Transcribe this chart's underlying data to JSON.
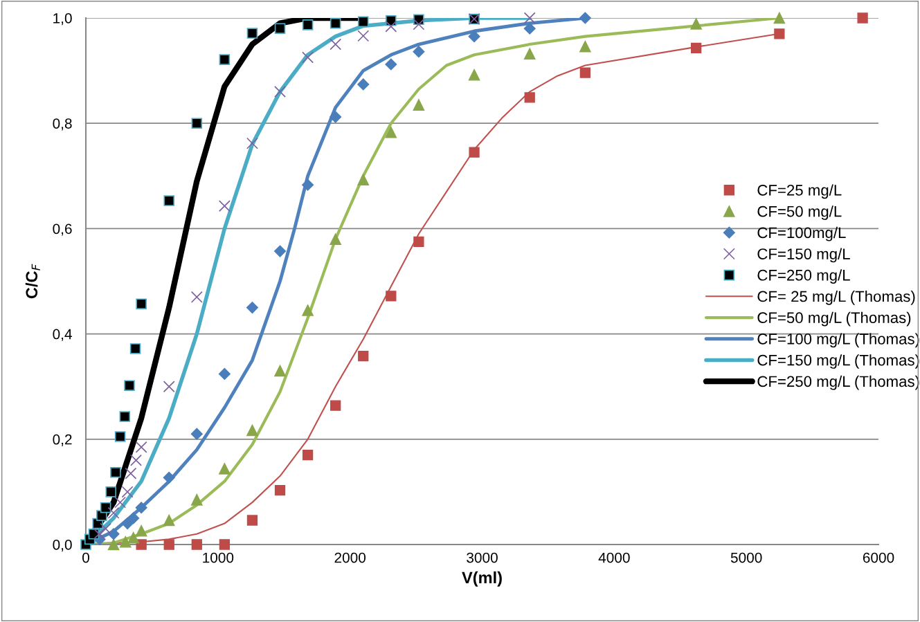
{
  "chart_data": {
    "type": "scatter",
    "xlabel": "V(ml)",
    "ylabel": "C/C$_{F}$",
    "xlim": [
      0,
      6000
    ],
    "xticks": [
      0,
      1000,
      2000,
      3000,
      4000,
      5000,
      6000
    ],
    "ylim": [
      0,
      1.0
    ],
    "yticks": [
      {
        "value": 0,
        "label": "0,0"
      },
      {
        "value": 0.2,
        "label": "0,2"
      },
      {
        "value": 0.4,
        "label": "0,4"
      },
      {
        "value": 0.6,
        "label": "0,6"
      },
      {
        "value": 0.8,
        "label": "0,8"
      },
      {
        "value": 1.0,
        "label": "1,0"
      }
    ],
    "grid": "y",
    "legend": "right",
    "series": [
      {
        "name": "CF=25 mg/L",
        "marker": "square",
        "color": "#be4b48",
        "x": [
          420,
          630,
          840,
          1050,
          1260,
          1470,
          1680,
          1890,
          2100,
          2310,
          2520,
          2940,
          3360,
          3780,
          4620,
          5250,
          5880
        ],
        "values": [
          0,
          0,
          0,
          0,
          0.046,
          0.103,
          0.17,
          0.264,
          0.358,
          0.472,
          0.575,
          0.745,
          0.849,
          0.896,
          0.943,
          0.97,
          1.0
        ]
      },
      {
        "name": "CF=50 mg/L",
        "marker": "triangle",
        "color": "#8aa64a",
        "x": [
          210,
          300,
          360,
          420,
          630,
          840,
          1050,
          1260,
          1470,
          1680,
          1890,
          2100,
          2310,
          2520,
          2940,
          3360,
          3780,
          4620,
          5250
        ],
        "values": [
          0,
          0.005,
          0.013,
          0.026,
          0.046,
          0.085,
          0.144,
          0.217,
          0.33,
          0.445,
          0.58,
          0.693,
          0.783,
          0.835,
          0.892,
          0.932,
          0.946,
          0.989,
          1.0
        ]
      },
      {
        "name": "CF=100mg/L",
        "marker": "diamond",
        "color": "#4a7ebb",
        "x": [
          105,
          210,
          315,
          360,
          420,
          630,
          840,
          1050,
          1260,
          1470,
          1680,
          1890,
          2100,
          2310,
          2520,
          2940,
          3360,
          3780
        ],
        "values": [
          0.01,
          0.02,
          0.04,
          0.05,
          0.07,
          0.127,
          0.21,
          0.324,
          0.45,
          0.557,
          0.683,
          0.812,
          0.874,
          0.912,
          0.936,
          0.965,
          0.98,
          1.0
        ]
      },
      {
        "name": "CF=150 mg/L",
        "marker": "cross",
        "color": "#7d60a0",
        "x": [
          100,
          150,
          210,
          260,
          315,
          340,
          380,
          420,
          630,
          840,
          1050,
          1260,
          1470,
          1680,
          1890,
          2100,
          2310,
          2520,
          2940,
          3360
        ],
        "values": [
          0.02,
          0.03,
          0.06,
          0.08,
          0.1,
          0.135,
          0.16,
          0.185,
          0.3,
          0.47,
          0.643,
          0.762,
          0.86,
          0.925,
          0.95,
          0.966,
          0.984,
          0.988,
          0.998,
          1.0
        ]
      },
      {
        "name": "CF=250 mg/L",
        "marker": "square",
        "color": "#000000",
        "x": [
          0,
          30,
          60,
          90,
          120,
          150,
          190,
          225,
          260,
          295,
          330,
          375,
          420,
          630,
          840,
          1050,
          1260,
          1470,
          1680,
          1890,
          2100,
          2310,
          2520,
          2940
        ],
        "values": [
          0,
          0.01,
          0.02,
          0.04,
          0.055,
          0.07,
          0.1,
          0.137,
          0.205,
          0.243,
          0.302,
          0.372,
          0.457,
          0.653,
          0.8,
          0.921,
          0.971,
          0.98,
          0.987,
          0.99,
          0.993,
          0.995,
          0.997,
          0.998
        ]
      },
      {
        "name": "CF= 25 mg/L (Thomas)",
        "type": "line",
        "marker": "none",
        "color": "#c0504d",
        "x": [
          0,
          420,
          630,
          840,
          1050,
          1260,
          1470,
          1680,
          1890,
          2100,
          2310,
          2520,
          2730,
          2940,
          3150,
          3360,
          3570,
          3780,
          4620,
          5250
        ],
        "values": [
          0,
          0.005,
          0.01,
          0.02,
          0.04,
          0.08,
          0.13,
          0.2,
          0.3,
          0.39,
          0.49,
          0.59,
          0.67,
          0.75,
          0.81,
          0.86,
          0.89,
          0.91,
          0.945,
          0.97
        ]
      },
      {
        "name": "CF=50 mg/L (Thomas)",
        "type": "line",
        "marker": "none",
        "color": "#9bbb59",
        "x": [
          0,
          210,
          420,
          630,
          840,
          1050,
          1260,
          1470,
          1680,
          1890,
          2100,
          2310,
          2520,
          2730,
          2940,
          3360,
          3780,
          4620,
          5250
        ],
        "values": [
          0,
          0.003,
          0.02,
          0.04,
          0.075,
          0.12,
          0.19,
          0.29,
          0.43,
          0.58,
          0.7,
          0.8,
          0.865,
          0.91,
          0.93,
          0.95,
          0.965,
          0.985,
          1.0
        ]
      },
      {
        "name": "CF=100 mg/L (Thomas)",
        "type": "line",
        "marker": "none",
        "color": "#4f81bd",
        "x": [
          0,
          210,
          420,
          630,
          840,
          1050,
          1260,
          1470,
          1580,
          1680,
          1890,
          2100,
          2310,
          2520,
          2940,
          3360,
          3780
        ],
        "values": [
          0,
          0.025,
          0.07,
          0.12,
          0.18,
          0.26,
          0.35,
          0.5,
          0.6,
          0.7,
          0.83,
          0.9,
          0.93,
          0.95,
          0.975,
          0.99,
          1.0
        ]
      },
      {
        "name": "CF=150 mg/L (Thomas)",
        "type": "line",
        "marker": "none",
        "color": "#4bacc6",
        "x": [
          0,
          210,
          420,
          630,
          840,
          1050,
          1260,
          1470,
          1680,
          1890,
          2100,
          2520,
          2940,
          3360
        ],
        "values": [
          0,
          0.05,
          0.12,
          0.24,
          0.4,
          0.6,
          0.76,
          0.86,
          0.93,
          0.965,
          0.985,
          0.995,
          1.0,
          1.0
        ]
      },
      {
        "name": "CF=250 mg/L (Thomas)",
        "type": "line",
        "marker": "none",
        "color": "#000000",
        "x": [
          0,
          210,
          420,
          630,
          840,
          1050,
          1260,
          1470,
          1680,
          1890,
          2100
        ],
        "values": [
          0,
          0.08,
          0.24,
          0.45,
          0.69,
          0.87,
          0.95,
          0.99,
          1.0,
          1.0,
          1.0
        ]
      }
    ]
  }
}
